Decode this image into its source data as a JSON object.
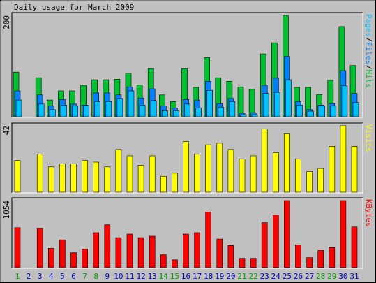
{
  "chart_data": [
    {
      "type": "bar",
      "title": "Daily usage for March 2009",
      "legend_separator": "/",
      "ylim": [
        0,
        200
      ],
      "yticks": [
        200
      ],
      "series": [
        {
          "name": "Hits",
          "color": "#00c030",
          "values": [
            88,
            0,
            77,
            33,
            51,
            51,
            62,
            73,
            73,
            74,
            86,
            63,
            95,
            43,
            30,
            95,
            58,
            117,
            77,
            70,
            59,
            54,
            124,
            146,
            200,
            58,
            58,
            44,
            72,
            178,
            101
          ]
        },
        {
          "name": "Files",
          "color": "#0080ff",
          "values": [
            51,
            0,
            43,
            21,
            34,
            25,
            23,
            47,
            47,
            43,
            59,
            37,
            55,
            21,
            17,
            34,
            33,
            70,
            26,
            36,
            7,
            8,
            62,
            76,
            119,
            30,
            14,
            23,
            26,
            91,
            46
          ]
        },
        {
          "name": "Pages",
          "color": "#00c0ff",
          "values": [
            33,
            0,
            25,
            14,
            23,
            21,
            22,
            30,
            30,
            36,
            51,
            23,
            32,
            12,
            12,
            25,
            17,
            52,
            19,
            30,
            4,
            4,
            46,
            48,
            73,
            23,
            11,
            21,
            21,
            61,
            28
          ]
        }
      ]
    },
    {
      "type": "bar",
      "ylim": [
        0,
        42
      ],
      "yticks": [
        42
      ],
      "series": [
        {
          "name": "Visits",
          "color": "#ffff00",
          "values": [
            20,
            0,
            24,
            16,
            18,
            18,
            20,
            19,
            16,
            27,
            23,
            17,
            23,
            10,
            12,
            32,
            24,
            30,
            31,
            27,
            21,
            23,
            40,
            25,
            37,
            21,
            13,
            15,
            29,
            42,
            29
          ]
        }
      ]
    },
    {
      "type": "bar",
      "ylim": [
        0,
        1054
      ],
      "yticks": [
        1054
      ],
      "series": [
        {
          "name": "KBytes",
          "color": "#ff0000",
          "values": [
            628,
            0,
            617,
            303,
            437,
            235,
            291,
            549,
            673,
            471,
            527,
            471,
            494,
            202,
            123,
            527,
            549,
            875,
            449,
            348,
            146,
            146,
            706,
            830,
            1054,
            359,
            157,
            269,
            314,
            1054,
            639
          ]
        }
      ],
      "categories": [
        "1",
        "2",
        "3",
        "4",
        "5",
        "6",
        "7",
        "8",
        "9",
        "10",
        "11",
        "12",
        "13",
        "14",
        "15",
        "16",
        "17",
        "18",
        "19",
        "20",
        "21",
        "22",
        "23",
        "24",
        "25",
        "26",
        "27",
        "28",
        "29",
        "30",
        "31"
      ],
      "category_colors": [
        "#00a000",
        "#0000c0",
        "#0000c0",
        "#0000c0",
        "#0000c0",
        "#0000c0",
        "#00a000",
        "#00a000",
        "#0000c0",
        "#0000c0",
        "#0000c0",
        "#0000c0",
        "#0000c0",
        "#00a000",
        "#00a000",
        "#0000c0",
        "#0000c0",
        "#0000c0",
        "#0000c0",
        "#0000c0",
        "#00a000",
        "#00a000",
        "#0000c0",
        "#0000c0",
        "#0000c0",
        "#0000c0",
        "#0000c0",
        "#00a000",
        "#00a000",
        "#0000c0",
        "#0000c0"
      ]
    }
  ]
}
